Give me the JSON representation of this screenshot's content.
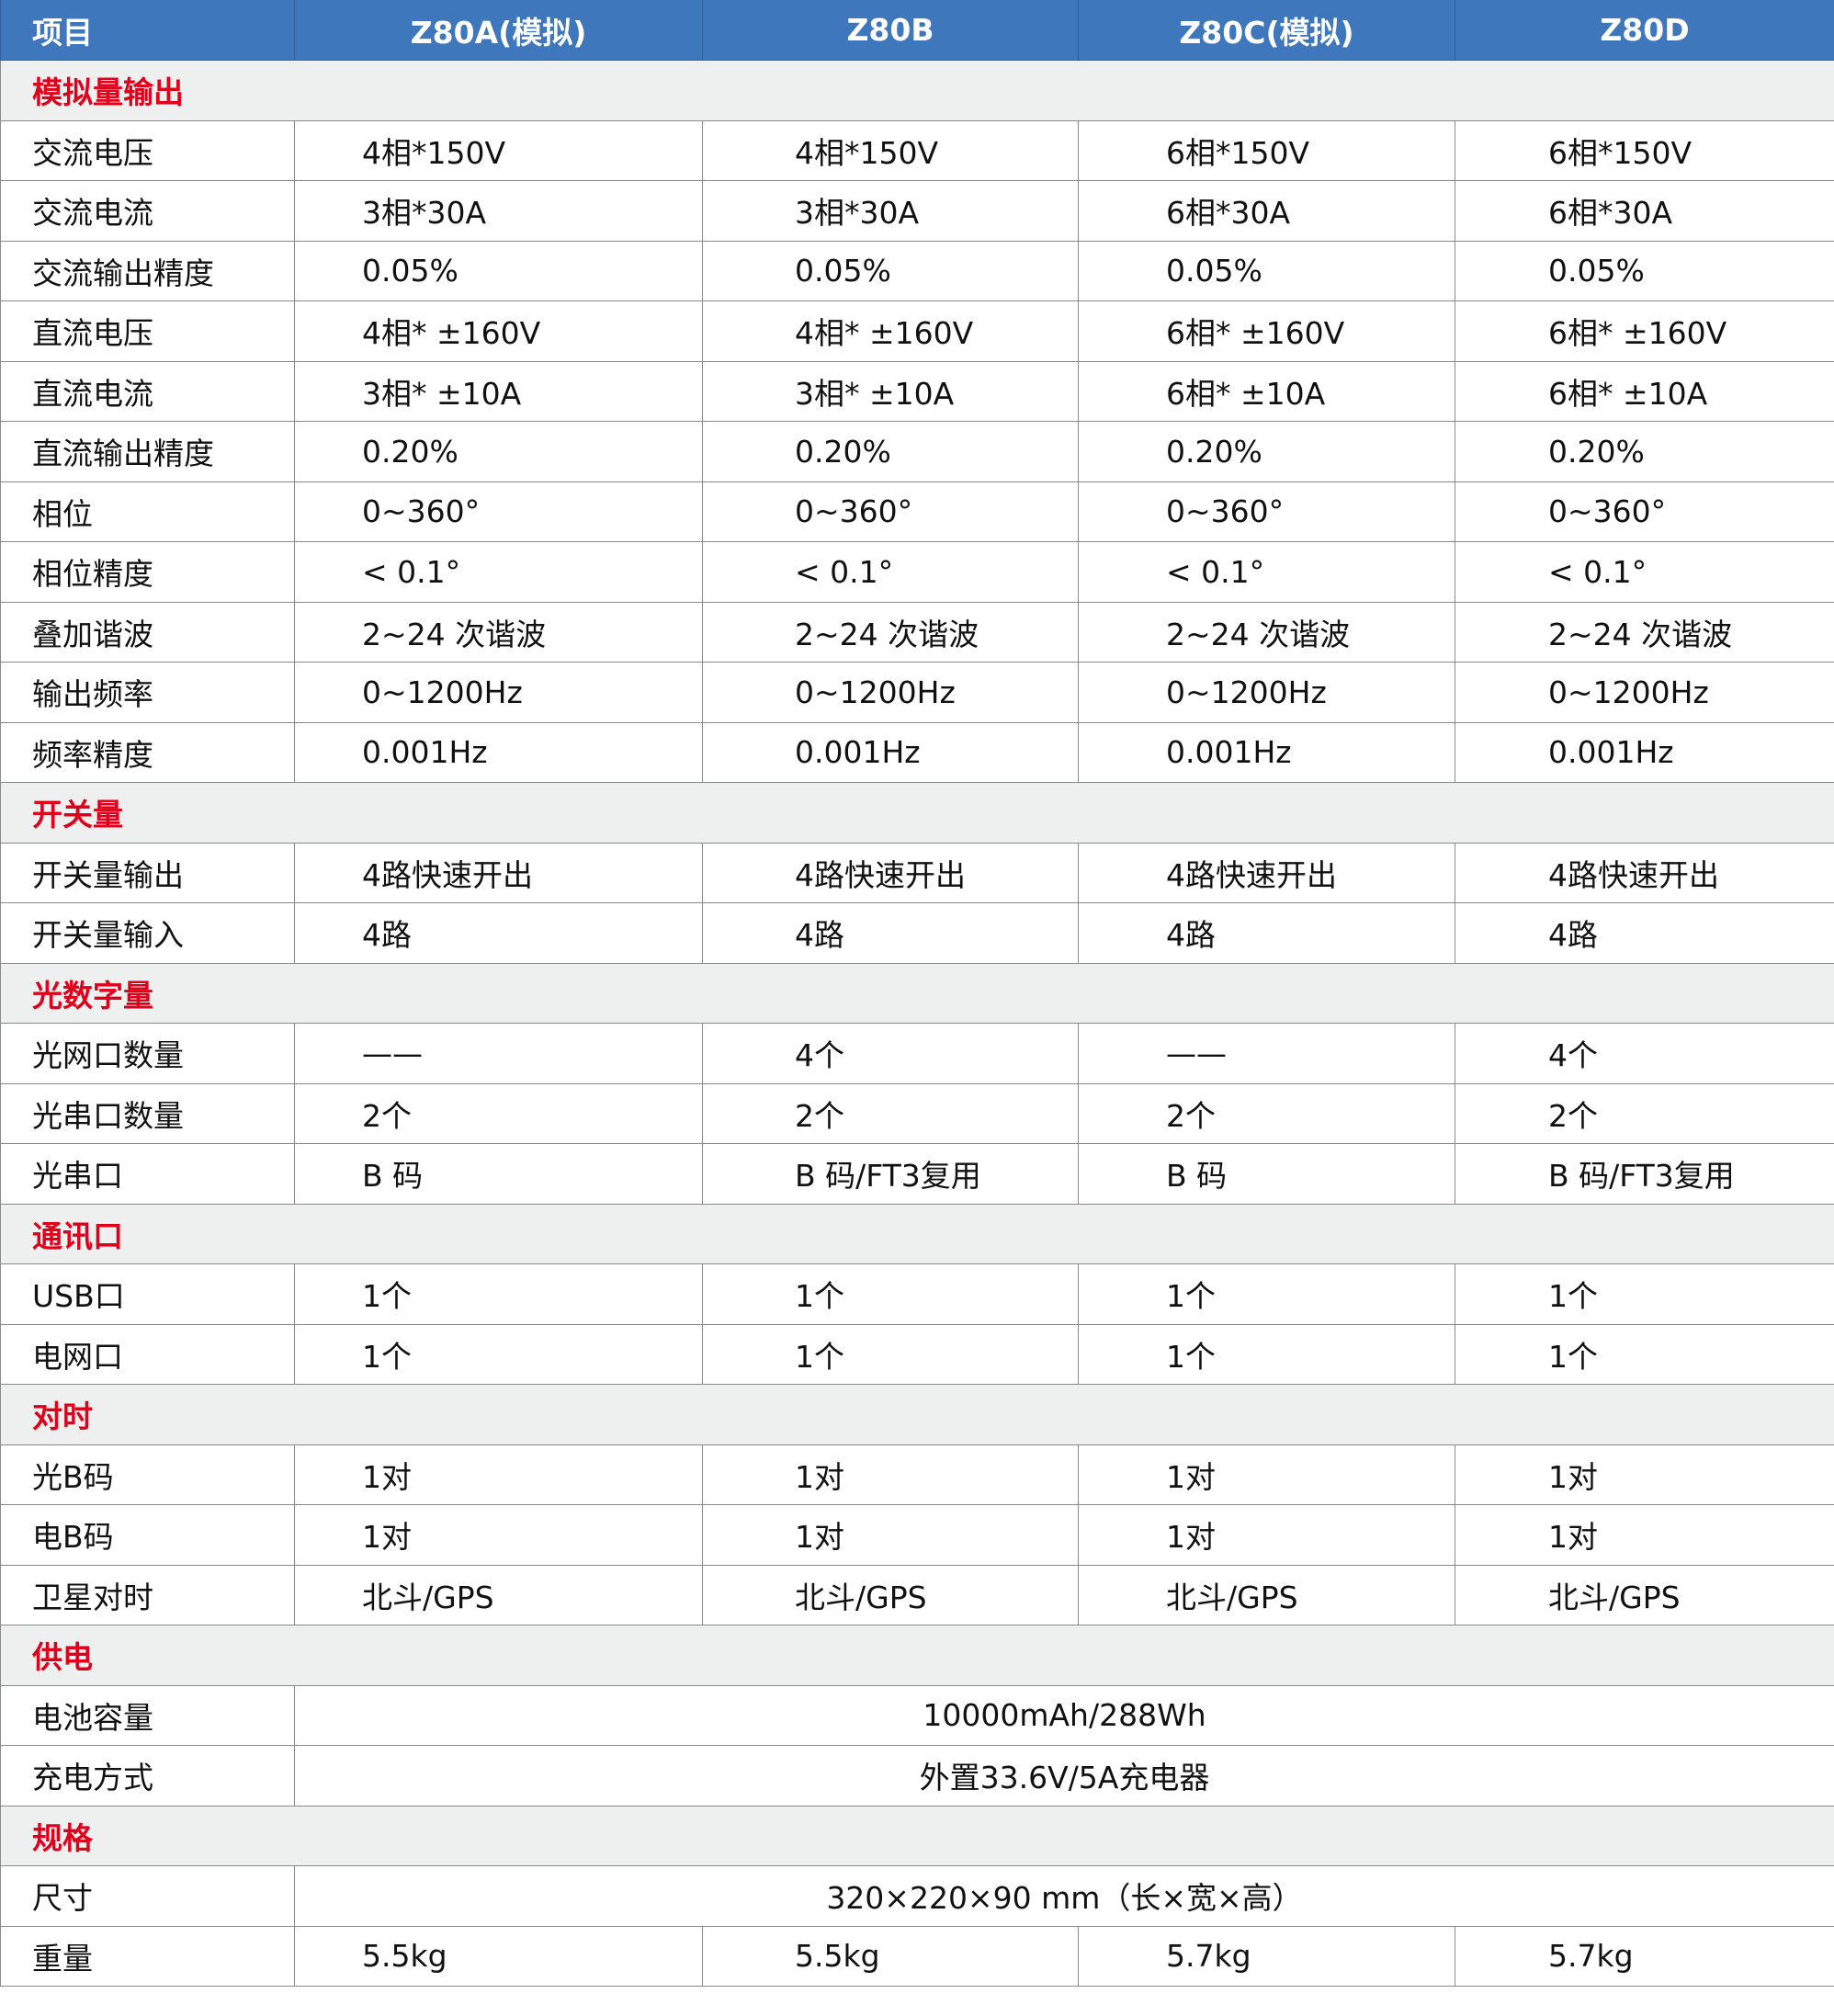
{
  "colors": {
    "header_bg": "#3f77bd",
    "section_bg": "#eef0ef",
    "section_text": "#e0001b"
  },
  "header": [
    "项目",
    "Z80A(模拟)",
    "Z80B",
    "Z80C(模拟)",
    "Z80D"
  ],
  "rows": [
    {
      "section": "模拟量输出"
    },
    {
      "label": "交流电压",
      "values": [
        "4相*150V",
        "4相*150V",
        "6相*150V",
        "6相*150V"
      ]
    },
    {
      "label": "交流电流",
      "values": [
        "3相*30A",
        "3相*30A",
        "6相*30A",
        "6相*30A"
      ]
    },
    {
      "label": "交流输出精度",
      "values": [
        "0.05%",
        "0.05%",
        "0.05%",
        "0.05%"
      ]
    },
    {
      "label": "直流电压",
      "values": [
        "4相* ±160V",
        "4相* ±160V",
        "6相* ±160V",
        "6相* ±160V"
      ]
    },
    {
      "label": "直流电流",
      "values": [
        "3相* ±10A",
        "3相* ±10A",
        "6相* ±10A",
        "6相* ±10A"
      ]
    },
    {
      "label": "直流输出精度",
      "values": [
        "0.20%",
        "0.20%",
        "0.20%",
        "0.20%"
      ]
    },
    {
      "label": "相位",
      "values": [
        "0~360°",
        "0~360°",
        "0~360°",
        "0~360°"
      ]
    },
    {
      "label": "相位精度",
      "values": [
        " < 0.1°",
        " < 0.1°",
        " < 0.1°",
        " < 0.1°"
      ]
    },
    {
      "label": "叠加谐波",
      "values": [
        "2~24 次谐波",
        "2~24 次谐波",
        "2~24 次谐波",
        "2~24 次谐波"
      ]
    },
    {
      "label": "输出频率",
      "values": [
        "0~1200Hz",
        "0~1200Hz",
        "0~1200Hz",
        "0~1200Hz"
      ]
    },
    {
      "label": "频率精度",
      "values": [
        "0.001Hz",
        "0.001Hz",
        "0.001Hz",
        "0.001Hz"
      ]
    },
    {
      "section": "开关量"
    },
    {
      "label": "开关量输出",
      "values": [
        "4路快速开出",
        "4路快速开出",
        "4路快速开出",
        "4路快速开出"
      ]
    },
    {
      "label": "开关量输入",
      "values": [
        "4路",
        "4路",
        "4路",
        "4路"
      ]
    },
    {
      "section": "光数字量"
    },
    {
      "label": "光网口数量",
      "values": [
        "——",
        "4个",
        "——",
        "4个"
      ]
    },
    {
      "label": "光串口数量",
      "values": [
        "2个",
        "2个",
        "2个",
        "2个"
      ]
    },
    {
      "label": "光串口",
      "values": [
        "B 码",
        "B 码/FT3复用",
        "B 码",
        "B 码/FT3复用"
      ]
    },
    {
      "section": "通讯口"
    },
    {
      "label": "USB口",
      "values": [
        "1个",
        "1个",
        "1个",
        "1个"
      ]
    },
    {
      "label": "电网口",
      "values": [
        "1个",
        "1个",
        "1个",
        "1个"
      ]
    },
    {
      "section": "对时"
    },
    {
      "label": "光B码",
      "values": [
        "1对",
        "1对",
        "1对",
        "1对"
      ]
    },
    {
      "label": "电B码",
      "values": [
        "1对",
        "1对",
        "1对",
        "1对"
      ]
    },
    {
      "label": "卫星对时",
      "values": [
        "北斗/GPS",
        "北斗/GPS",
        "北斗/GPS",
        "北斗/GPS"
      ]
    },
    {
      "section": "供电"
    },
    {
      "label": "电池容量",
      "span": "10000mAh/288Wh"
    },
    {
      "label": "充电方式",
      "span": "外置33.6V/5A充电器"
    },
    {
      "section": "规格"
    },
    {
      "label": "尺寸",
      "span": "320×220×90 mm（长×宽×高）"
    },
    {
      "label": "重量",
      "values": [
        "5.5kg",
        "5.5kg",
        "5.7kg",
        "5.7kg"
      ]
    }
  ]
}
